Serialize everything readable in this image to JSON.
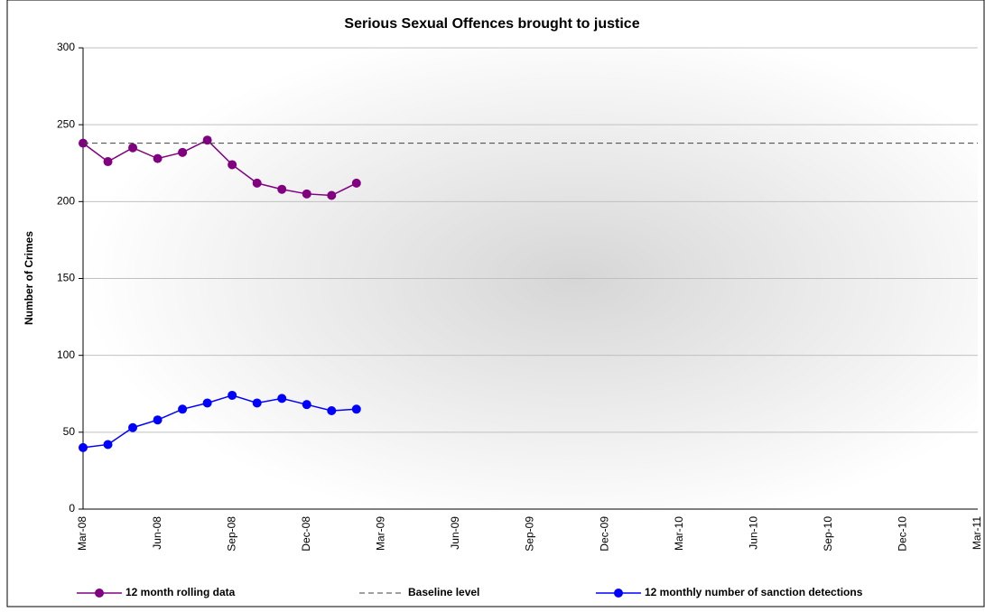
{
  "chart_data": {
    "type": "line",
    "title": "Serious Sexual Offences brought to justice",
    "y_label": "Number of Crimes",
    "categories": [
      "Mar-08",
      null,
      null,
      "Jun-08",
      null,
      null,
      "Sep-08",
      null,
      null,
      "Dec-08",
      null,
      null,
      "Mar-09",
      null,
      null,
      "Jun-09",
      null,
      null,
      "Sep-09",
      null,
      null,
      "Dec-09",
      null,
      null,
      "Mar-10",
      null,
      null,
      "Jun-10",
      null,
      null,
      "Sep-10",
      null,
      null,
      "Dec-10",
      null,
      null,
      "Mar-11"
    ],
    "series": [
      {
        "name": "12 month rolling data",
        "color": "#800080",
        "marker": true,
        "dashed": false,
        "values": [
          238,
          226,
          235,
          228,
          232,
          240,
          224,
          212,
          208,
          205,
          204,
          212,
          null,
          null,
          null,
          null,
          null,
          null,
          null,
          null,
          null,
          null,
          null,
          null,
          null,
          null,
          null,
          null,
          null,
          null,
          null,
          null,
          null,
          null,
          null,
          null,
          null
        ]
      },
      {
        "name": "Baseline level",
        "color": "#404040",
        "marker": false,
        "dashed": true,
        "values": [
          238,
          238,
          238,
          238,
          238,
          238,
          238,
          238,
          238,
          238,
          238,
          238,
          238,
          238,
          238,
          238,
          238,
          238,
          238,
          238,
          238,
          238,
          238,
          238,
          238,
          238,
          238,
          238,
          238,
          238,
          238,
          238,
          238,
          238,
          238,
          238,
          238
        ]
      },
      {
        "name": "12 monthly number of sanction detections",
        "color": "#0000ff",
        "marker": true,
        "dashed": false,
        "values": [
          40,
          42,
          53,
          58,
          65,
          69,
          74,
          69,
          72,
          68,
          64,
          65,
          null,
          null,
          null,
          null,
          null,
          null,
          null,
          null,
          null,
          null,
          null,
          null,
          null,
          null,
          null,
          null,
          null,
          null,
          null,
          null,
          null,
          null,
          null,
          null,
          null
        ]
      }
    ],
    "ylim": [
      0,
      300
    ],
    "yticks": [
      0,
      50,
      100,
      150,
      200,
      250,
      300
    ],
    "grid": true
  }
}
